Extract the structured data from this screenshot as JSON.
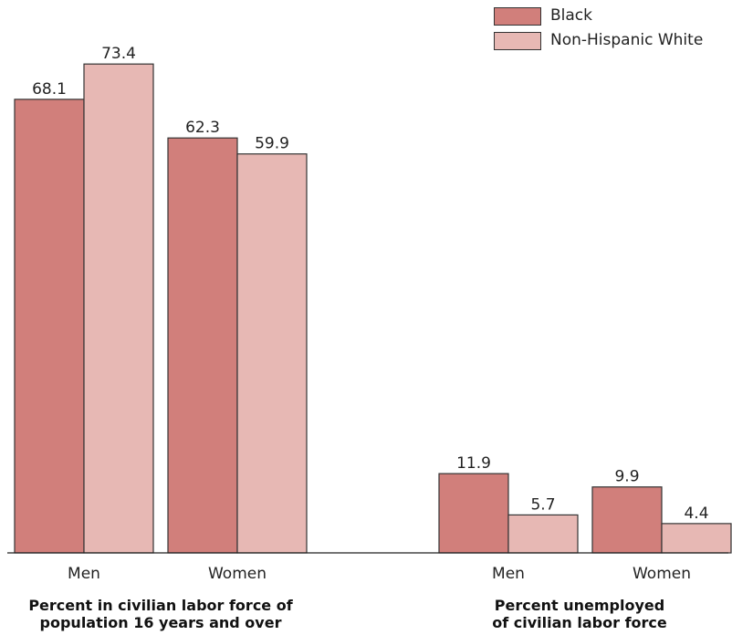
{
  "colors": {
    "black": "#d17f7b",
    "non_hispanic_white": "#e7b8b4",
    "outline": "#333333",
    "axis": "#222222"
  },
  "legend": [
    {
      "label": "Black",
      "color": "#d17f7b"
    },
    {
      "label": "Non-Hispanic White",
      "color": "#e7b8b4"
    }
  ],
  "group_titles": [
    {
      "line1": "Percent in civilian labor force of",
      "line2": "population 16 years and over"
    },
    {
      "line1": "Percent unemployed",
      "line2": "of civilian labor force"
    }
  ],
  "chart_data": [
    {
      "type": "bar",
      "title": "Percent in civilian labor force of population 16 years and over",
      "categories": [
        "Men",
        "Women"
      ],
      "series": [
        {
          "name": "Black",
          "values": [
            68.1,
            62.3
          ]
        },
        {
          "name": "Non-Hispanic White",
          "values": [
            73.4,
            59.9
          ]
        }
      ],
      "ylim": [
        0,
        75
      ],
      "grid": false,
      "legend": "top-right"
    },
    {
      "type": "bar",
      "title": "Percent unemployed of civilian labor force",
      "categories": [
        "Men",
        "Women"
      ],
      "series": [
        {
          "name": "Black",
          "values": [
            11.9,
            9.9
          ]
        },
        {
          "name": "Non-Hispanic White",
          "values": [
            5.7,
            4.4
          ]
        }
      ],
      "ylim": [
        0,
        75
      ],
      "grid": false,
      "legend": "top-right"
    }
  ]
}
